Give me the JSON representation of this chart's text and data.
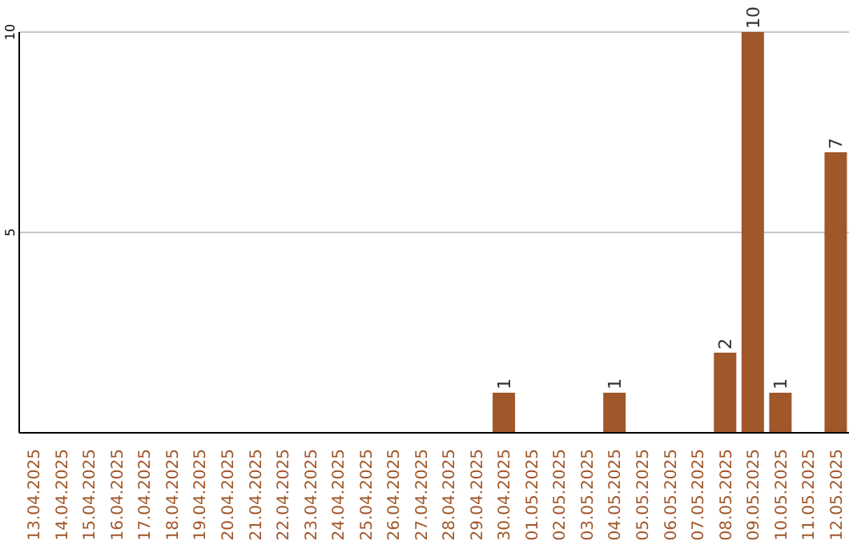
{
  "chart_data": {
    "type": "bar",
    "categories": [
      "13.04.2025",
      "14.04.2025",
      "15.04.2025",
      "16.04.2025",
      "17.04.2025",
      "18.04.2025",
      "19.04.2025",
      "20.04.2025",
      "21.04.2025",
      "22.04.2025",
      "23.04.2025",
      "24.04.2025",
      "25.04.2025",
      "26.04.2025",
      "27.04.2025",
      "28.04.2025",
      "29.04.2025",
      "30.04.2025",
      "01.05.2025",
      "02.05.2025",
      "03.05.2025",
      "04.05.2025",
      "05.05.2025",
      "06.05.2025",
      "07.05.2025",
      "08.05.2025",
      "09.05.2025",
      "10.05.2025",
      "11.05.2025",
      "12.05.2025"
    ],
    "values": [
      0,
      0,
      0,
      0,
      0,
      0,
      0,
      0,
      0,
      0,
      0,
      0,
      0,
      0,
      0,
      0,
      0,
      1,
      0,
      0,
      0,
      1,
      0,
      0,
      0,
      2,
      10,
      1,
      0,
      7
    ],
    "value_labels": [
      null,
      null,
      null,
      null,
      null,
      null,
      null,
      null,
      null,
      null,
      null,
      null,
      null,
      null,
      null,
      null,
      null,
      "1",
      null,
      null,
      null,
      "1",
      null,
      null,
      null,
      "2",
      "10",
      "1",
      null,
      "7"
    ],
    "color": "#a0572a",
    "ylim": [
      0,
      10
    ],
    "yticks": [
      5,
      10
    ],
    "grid": "y"
  }
}
